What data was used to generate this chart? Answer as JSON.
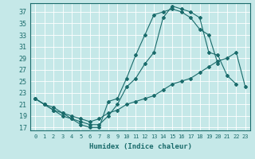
{
  "xlabel": "Humidex (Indice chaleur)",
  "background_color": "#c5e8e8",
  "line_color": "#1a6b6b",
  "xlim": [
    -0.5,
    23.5
  ],
  "ylim": [
    16.5,
    38.5
  ],
  "yticks": [
    17,
    19,
    21,
    23,
    25,
    27,
    29,
    31,
    33,
    35,
    37
  ],
  "xticks": [
    0,
    1,
    2,
    3,
    4,
    5,
    6,
    7,
    8,
    9,
    10,
    11,
    12,
    13,
    14,
    15,
    16,
    17,
    18,
    19,
    20,
    21,
    22,
    23
  ],
  "line1_x": [
    0,
    1,
    2,
    3,
    4,
    5,
    6,
    7,
    8,
    9,
    10,
    11,
    12,
    13,
    14,
    15,
    16,
    17,
    18,
    19,
    20,
    21
  ],
  "line1_y": [
    22,
    21,
    20,
    19,
    18.5,
    17.5,
    17,
    17,
    21.5,
    22,
    25.5,
    29.5,
    33,
    36.5,
    37,
    37.5,
    37,
    36,
    34,
    33,
    28,
    null
  ],
  "line2_x": [
    0,
    1,
    2,
    3,
    4,
    5,
    6,
    7,
    8,
    9,
    10,
    11,
    12,
    13,
    14,
    15,
    16,
    17,
    18,
    19,
    20,
    21,
    22
  ],
  "line2_y": [
    22,
    21,
    20.5,
    19.5,
    18.5,
    18,
    17.5,
    17.5,
    19,
    21,
    24,
    25.5,
    28,
    30,
    36,
    38,
    37.5,
    37,
    36,
    30,
    29.5,
    26,
    24.5
  ],
  "line3_x": [
    0,
    1,
    2,
    3,
    4,
    5,
    6,
    7,
    8,
    9,
    10,
    11,
    12,
    13,
    14,
    15,
    16,
    17,
    18,
    19,
    20,
    21,
    22,
    23
  ],
  "line3_y": [
    22,
    21,
    20,
    19.5,
    19,
    18.5,
    18,
    18.5,
    19.5,
    20,
    21,
    21.5,
    22,
    22.5,
    23.5,
    24.5,
    25,
    25.5,
    26.5,
    27.5,
    28.5,
    29,
    30,
    24
  ]
}
